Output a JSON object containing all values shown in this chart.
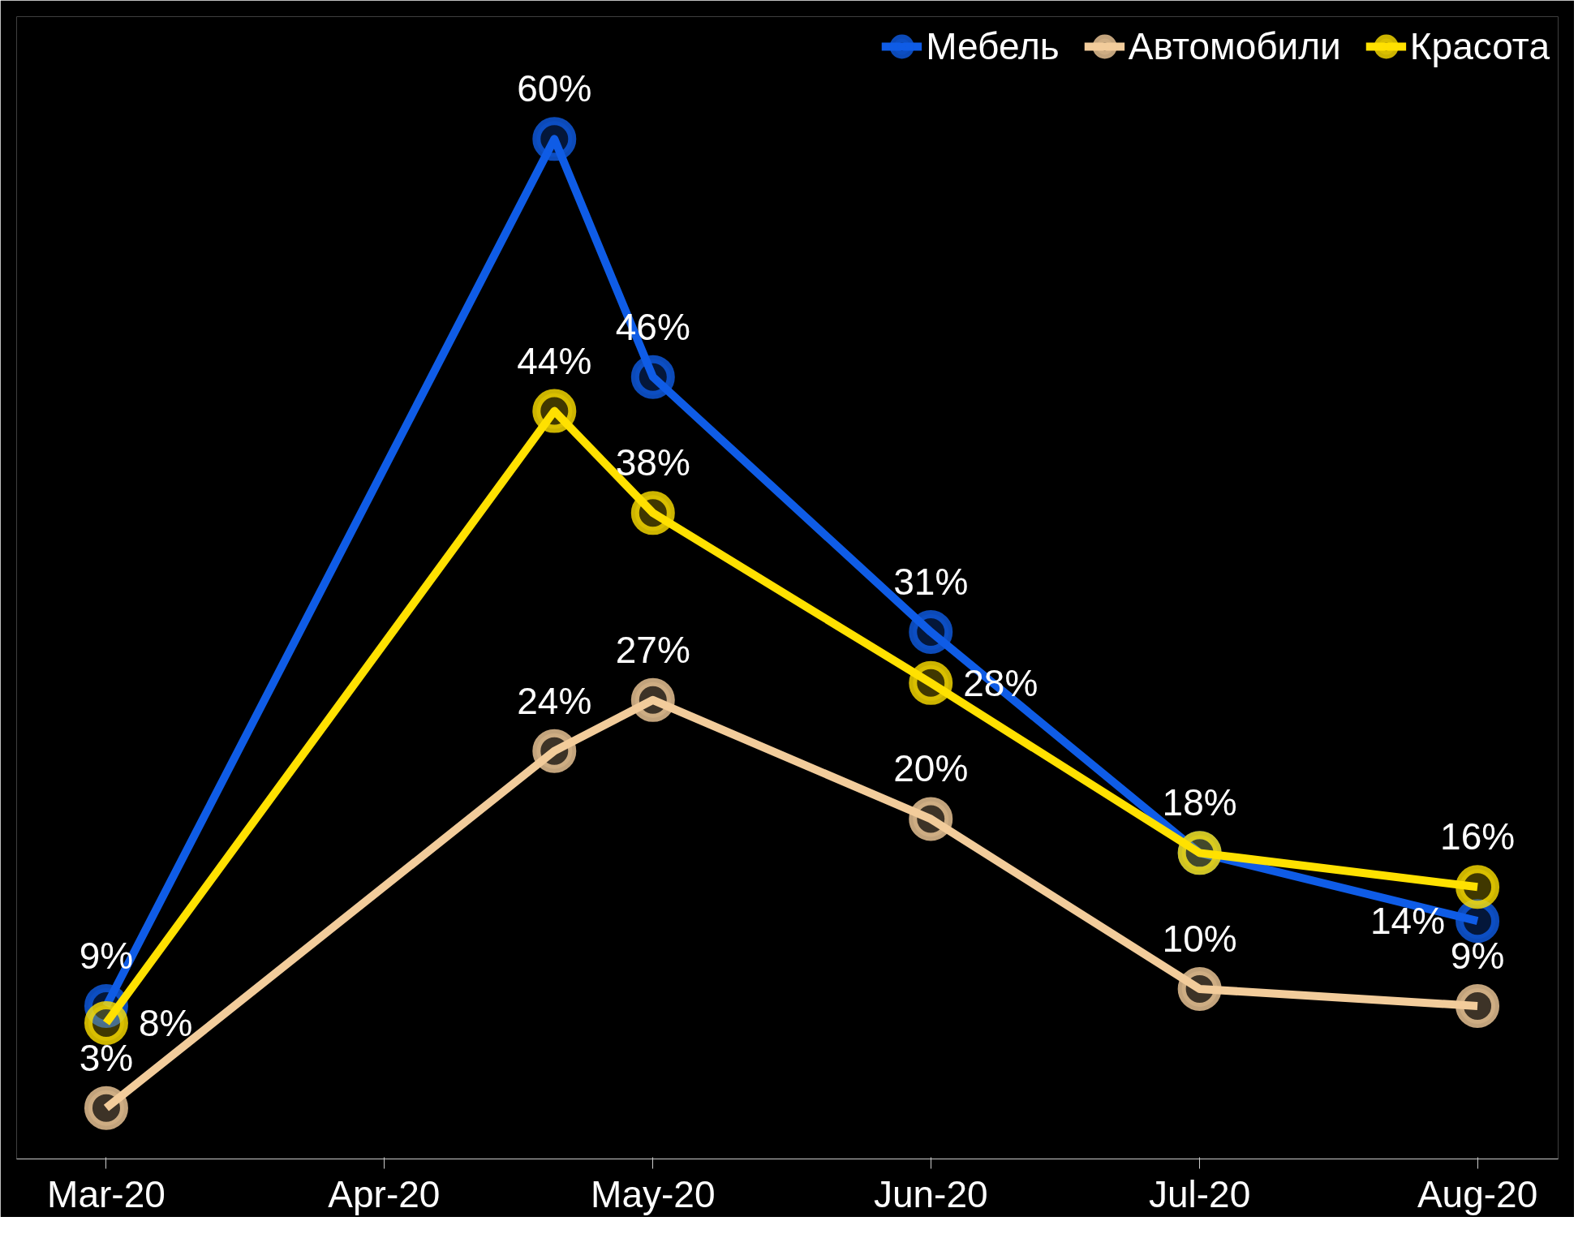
{
  "chart_data": {
    "type": "line",
    "x": [
      "2020-03-01",
      "2020-04-20",
      "2020-05-01",
      "2020-06-01",
      "2020-07-01",
      "2020-08-01"
    ],
    "series": [
      {
        "name": "Мебель",
        "color": "#0f5ce6",
        "values": [
          9,
          60,
          46,
          31,
          18,
          14
        ],
        "value_labels": [
          "9%",
          "60%",
          "46%",
          "31%",
          "18%",
          "14%"
        ]
      },
      {
        "name": "Автомобили",
        "color": "#f2cc9b",
        "values": [
          3,
          24,
          27,
          20,
          10,
          9
        ],
        "value_labels": [
          "3%",
          "24%",
          "27%",
          "20%",
          "10%",
          "9%"
        ]
      },
      {
        "name": "Красота",
        "color": "#ffe100",
        "values": [
          8,
          44,
          38,
          28,
          18,
          16
        ],
        "value_labels": [
          "8%",
          "44%",
          "38%",
          "28%",
          null,
          "16%"
        ]
      }
    ],
    "xlim": [
      "2020-02-20",
      "2020-08-10"
    ],
    "xticks": [
      {
        "value": "2020-03-01",
        "label": "Mar-20"
      },
      {
        "value": "2020-04-01",
        "label": "Apr-20"
      },
      {
        "value": "2020-05-01",
        "label": "May-20"
      },
      {
        "value": "2020-06-01",
        "label": "Jun-20"
      },
      {
        "value": "2020-07-01",
        "label": "Jul-20"
      },
      {
        "value": "2020-08-01",
        "label": "Aug-20"
      }
    ],
    "tick_labels": "x",
    "marker": "circle",
    "line_style": "solid",
    "legend": "top right"
  }
}
